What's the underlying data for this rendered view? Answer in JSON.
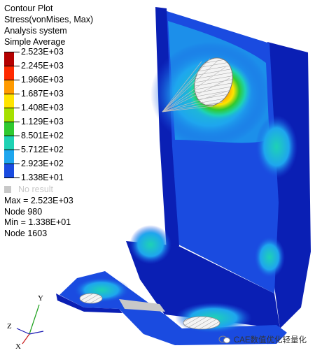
{
  "plot": {
    "title": "Contour Plot",
    "result_type": "Stress(vonMises, Max)",
    "system": "Analysis system",
    "averaging": "Simple Average"
  },
  "legend": {
    "levels": [
      {
        "value": "2.523E+03",
        "color": "#b40000"
      },
      {
        "value": "2.245E+03",
        "color": "#ff2a00"
      },
      {
        "value": "1.966E+03",
        "color": "#ff9a00"
      },
      {
        "value": "1.687E+03",
        "color": "#ffe400"
      },
      {
        "value": "1.408E+03",
        "color": "#a6e000"
      },
      {
        "value": "1.129E+03",
        "color": "#2fc92f"
      },
      {
        "value": "8.501E+02",
        "color": "#1ed2b4"
      },
      {
        "value": "5.712E+02",
        "color": "#1ea6ee"
      },
      {
        "value": "2.923E+02",
        "color": "#1a4be0"
      },
      {
        "value": "1.338E+01",
        "color": "#0a1fb4"
      }
    ],
    "no_result": "No result",
    "no_result_color": "#c8c8c8"
  },
  "stats": {
    "max": "Max = 2.523E+03",
    "max_node": "Node 980",
    "min": "Min = 1.338E+01",
    "min_node": "Node 1603"
  },
  "triad": {
    "x": "X",
    "y": "Y",
    "z": "Z"
  },
  "watermark": {
    "text": "CAE数值优化轻量化"
  }
}
